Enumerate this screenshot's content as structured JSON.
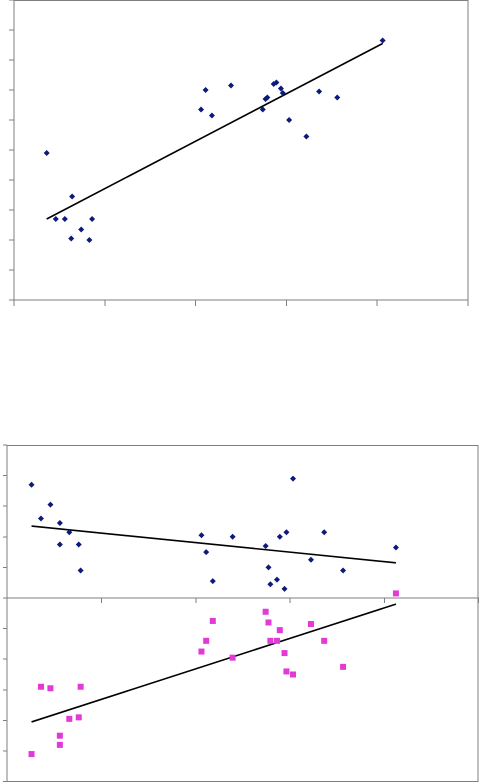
{
  "colors": {
    "series_navy": "#0b1b7a",
    "series_magenta": "#e23ad6",
    "trendline": "#000000",
    "axis": "#7f7f7f"
  },
  "chart_data": [
    {
      "type": "scatter",
      "title": "",
      "xlabel": "",
      "ylabel": "",
      "legend": "none",
      "grid": false,
      "xlim": [
        0,
        50
      ],
      "ylim": [
        0,
        10
      ],
      "series": [
        {
          "marker": "diamond",
          "color": "#0b1b7a",
          "x": [
            3.6,
            4.6,
            5.6,
            6.3,
            6.4,
            7.4,
            8.3,
            8.6,
            20.6,
            21.1,
            21.8,
            23.9,
            27.4,
            27.7,
            27.9,
            28.6,
            28.9,
            29.4,
            29.6,
            30.3,
            32.2,
            33.6,
            35.6,
            40.6
          ],
          "y": [
            4.9,
            2.7,
            2.7,
            2.05,
            3.45,
            2.35,
            2.0,
            2.7,
            6.35,
            7.0,
            6.15,
            7.15,
            6.35,
            6.7,
            6.75,
            7.2,
            7.25,
            7.05,
            6.9,
            6.0,
            5.45,
            6.95,
            6.75,
            8.65
          ]
        }
      ],
      "trendline": {
        "x": [
          3.6,
          40.6
        ],
        "y": [
          2.7,
          8.55
        ]
      }
    },
    {
      "type": "scatter",
      "title": "",
      "xlabel": "",
      "ylabel": "",
      "legend": "none",
      "grid": false,
      "xlim": [
        0,
        50
      ],
      "ylim": [
        -6,
        5
      ],
      "series": [
        {
          "marker": "diamond",
          "color": "#0b1b7a",
          "x": [
            2.6,
            3.6,
            4.6,
            5.6,
            5.6,
            6.6,
            7.6,
            7.8,
            20.6,
            21.1,
            21.8,
            23.9,
            27.4,
            27.7,
            27.9,
            28.6,
            28.9,
            29.4,
            29.6,
            30.3,
            32.2,
            33.6,
            35.6,
            41.2
          ],
          "y": [
            3.7,
            2.6,
            3.05,
            2.45,
            1.75,
            2.15,
            1.75,
            0.9,
            2.05,
            1.5,
            0.55,
            2.0,
            1.7,
            1.0,
            0.45,
            0.6,
            2.0,
            0.3,
            2.15,
            3.9,
            1.25,
            2.15,
            0.9,
            1.65
          ]
        },
        {
          "marker": "square",
          "color": "#e23ad6",
          "x": [
            2.6,
            3.6,
            4.6,
            5.6,
            5.6,
            6.6,
            7.6,
            7.8,
            20.6,
            21.1,
            21.8,
            23.9,
            27.4,
            27.7,
            27.9,
            28.6,
            28.9,
            29.4,
            29.6,
            30.3,
            32.2,
            33.6,
            35.6,
            41.2
          ],
          "y": [
            -5.1,
            -2.9,
            -2.95,
            -4.5,
            -4.8,
            -3.95,
            -3.9,
            -2.9,
            -1.75,
            -1.4,
            -0.75,
            -1.95,
            -0.45,
            -0.8,
            -1.4,
            -1.4,
            -1.05,
            -1.8,
            -2.4,
            -2.5,
            -0.85,
            -1.4,
            -2.25,
            0.15
          ]
        }
      ],
      "trendlines": [
        {
          "x": [
            2.6,
            41.2
          ],
          "y": [
            2.35,
            1.15
          ]
        },
        {
          "x": [
            2.6,
            41.2
          ],
          "y": [
            -4.05,
            -0.2
          ]
        }
      ]
    }
  ]
}
